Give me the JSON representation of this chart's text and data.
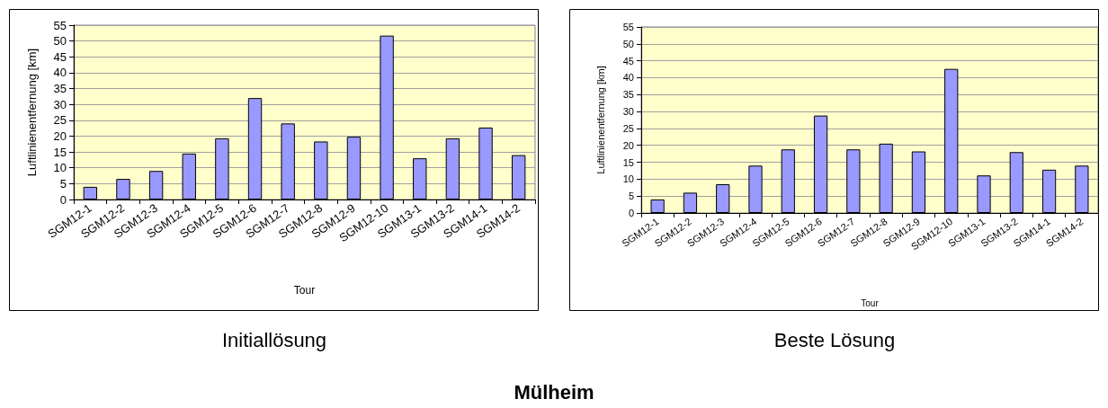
{
  "chart_data": [
    {
      "type": "bar",
      "title": "Initiallösung",
      "xlabel": "Tour",
      "ylabel": "Luftlinienentfernung [km]",
      "categories": [
        "SGM12-1",
        "SGM12-2",
        "SGM12-3",
        "SGM12-4",
        "SGM12-5",
        "SGM12-6",
        "SGM12-7",
        "SGM12-8",
        "SGM12-9",
        "SGM12-10",
        "SGM13-1",
        "SGM13-2",
        "SGM14-1",
        "SGM14-2"
      ],
      "values": [
        4,
        6.5,
        9,
        14.5,
        19.3,
        32,
        24,
        18.3,
        19.8,
        51.7,
        13,
        19.3,
        22.7,
        14
      ],
      "color": "#9999ff",
      "ylim": [
        0,
        55
      ],
      "yticks": [
        0,
        5,
        10,
        15,
        20,
        25,
        30,
        35,
        40,
        45,
        50,
        55
      ],
      "grid": "y",
      "annotations": [
        "Mülheim"
      ]
    },
    {
      "type": "bar",
      "title": "Beste Lösung",
      "xlabel": "Tour",
      "ylabel": "Luftlinienentfernung [km]",
      "categories": [
        "SGM12-1",
        "SGM12-2",
        "SGM12-3",
        "SGM12-4",
        "SGM12-5",
        "SGM12-6",
        "SGM12-7",
        "SGM12-8",
        "SGM12-9",
        "SGM12-10",
        "SGM13-1",
        "SGM13-2",
        "SGM14-1",
        "SGM14-2"
      ],
      "values": [
        4,
        6,
        8.5,
        14,
        18.8,
        28.8,
        18.8,
        20.5,
        18.2,
        42.6,
        11.1,
        18,
        12.8,
        14
      ],
      "color": "#9999ff",
      "ylim": [
        0,
        55
      ],
      "yticks": [
        0,
        5,
        10,
        15,
        20,
        25,
        30,
        35,
        40,
        45,
        50,
        55
      ],
      "grid": "y"
    }
  ]
}
